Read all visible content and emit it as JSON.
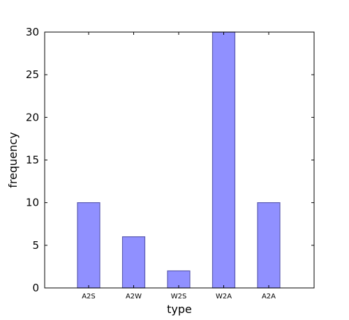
{
  "chart_data": {
    "type": "bar",
    "categories": [
      "A2S",
      "A2W",
      "W2S",
      "W2A",
      "A2A"
    ],
    "values": [
      10,
      6,
      2,
      30,
      10
    ],
    "xlabel": "type",
    "ylabel": "frequency",
    "ylim": [
      0,
      30
    ],
    "yticks": [
      0,
      5,
      10,
      15,
      20,
      25,
      30
    ],
    "grid": false,
    "bar_color": "#9090ff",
    "bar_edge_color": "#5c5cb0"
  }
}
